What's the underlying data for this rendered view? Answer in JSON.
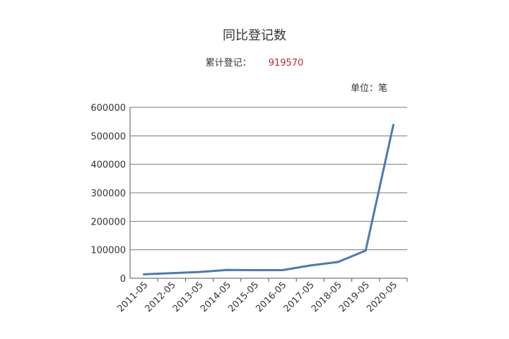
{
  "header": {
    "title": "同比登记数",
    "total_label": "累计登记：",
    "total_value": "919570",
    "unit": "单位：笔"
  },
  "colors": {
    "line": "#4a7ab3",
    "axis": "#555555",
    "grid": "#777777",
    "total_value": "#c0282c"
  },
  "chart_data": {
    "type": "line",
    "title": "同比登记数",
    "xlabel": "",
    "ylabel": "",
    "categories": [
      "2011-05",
      "2012-05",
      "2013-05",
      "2014-05",
      "2015-05",
      "2016-05",
      "2017-05",
      "2018-05",
      "2019-05",
      "2020-05"
    ],
    "y_ticks": [
      "0",
      "100000",
      "200000",
      "300000",
      "400000",
      "500000",
      "600000"
    ],
    "ylim": [
      0,
      600000
    ],
    "grid": true,
    "series": [
      {
        "values": [
          14000,
          18000,
          22000,
          29000,
          28500,
          28500,
          45000,
          57000,
          97000,
          538000
        ]
      }
    ]
  }
}
